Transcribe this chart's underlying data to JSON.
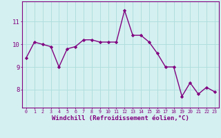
{
  "x": [
    0,
    1,
    2,
    3,
    4,
    5,
    6,
    7,
    8,
    9,
    10,
    11,
    12,
    13,
    14,
    15,
    16,
    17,
    18,
    19,
    20,
    21,
    22,
    23
  ],
  "y": [
    9.4,
    10.1,
    10.0,
    9.9,
    9.0,
    9.8,
    9.9,
    10.2,
    10.2,
    10.1,
    10.1,
    10.1,
    11.5,
    10.4,
    10.4,
    10.1,
    9.6,
    9.0,
    9.0,
    7.7,
    8.3,
    7.8,
    8.1,
    7.9
  ],
  "line_color": "#800080",
  "marker": "D",
  "marker_size": 2.2,
  "linewidth": 1.0,
  "xlabel": "Windchill (Refroidissement éolien,°C)",
  "xlabel_fontsize": 6.5,
  "yticks": [
    8,
    9,
    10,
    11
  ],
  "xticks": [
    0,
    1,
    2,
    3,
    4,
    5,
    6,
    7,
    8,
    9,
    10,
    11,
    12,
    13,
    14,
    15,
    16,
    17,
    18,
    19,
    20,
    21,
    22,
    23
  ],
  "xtick_fontsize": 4.8,
  "ytick_fontsize": 6.5,
  "ylim": [
    7.2,
    11.9
  ],
  "xlim": [
    -0.5,
    23.5
  ],
  "bg_color": "#d5f0f0",
  "grid_color": "#b0dede",
  "spine_color": "#800080"
}
